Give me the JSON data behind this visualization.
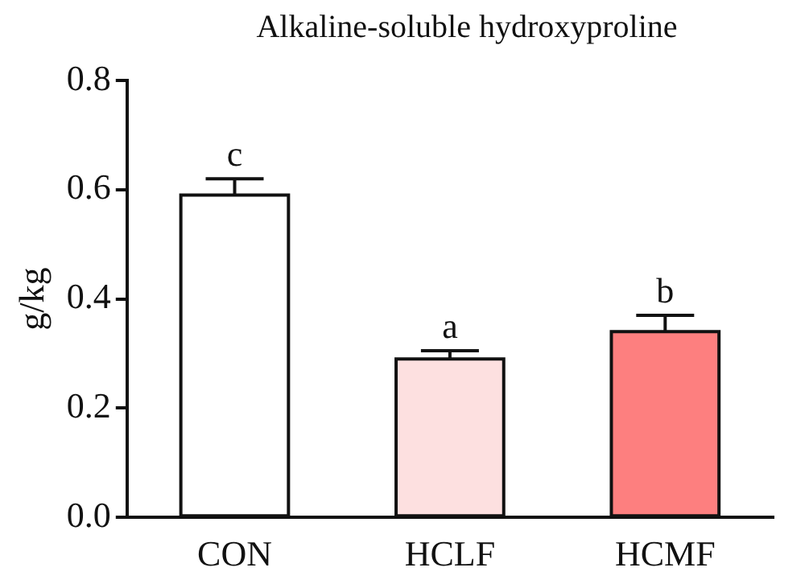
{
  "chart_data": {
    "type": "bar",
    "title": "Alkaline-soluble hydroxyproline",
    "ylabel": "g/kg",
    "categories": [
      "CON",
      "HCLF",
      "HCMF"
    ],
    "values": [
      0.59,
      0.29,
      0.34
    ],
    "errors": [
      0.03,
      0.015,
      0.03
    ],
    "colors": [
      "#ffffff",
      "#fde0e0",
      "#fd7f7f"
    ],
    "ylim": [
      0,
      0.8
    ],
    "yticks": [
      {
        "value": 0,
        "label": "0.0"
      },
      {
        "value": 0.2,
        "label": "0.2"
      },
      {
        "value": 0.4,
        "label": "0.4"
      },
      {
        "value": 0.6,
        "label": "0.6"
      },
      {
        "value": 0.8,
        "label": "0.8"
      }
    ],
    "grid": false,
    "legend": false,
    "annotations": [
      {
        "text": "c",
        "x": "CON",
        "y": 0.62
      },
      {
        "text": "a",
        "x": "HCLF",
        "y": 0.305
      },
      {
        "text": "b",
        "x": "HCMF",
        "y": 0.37
      }
    ]
  }
}
